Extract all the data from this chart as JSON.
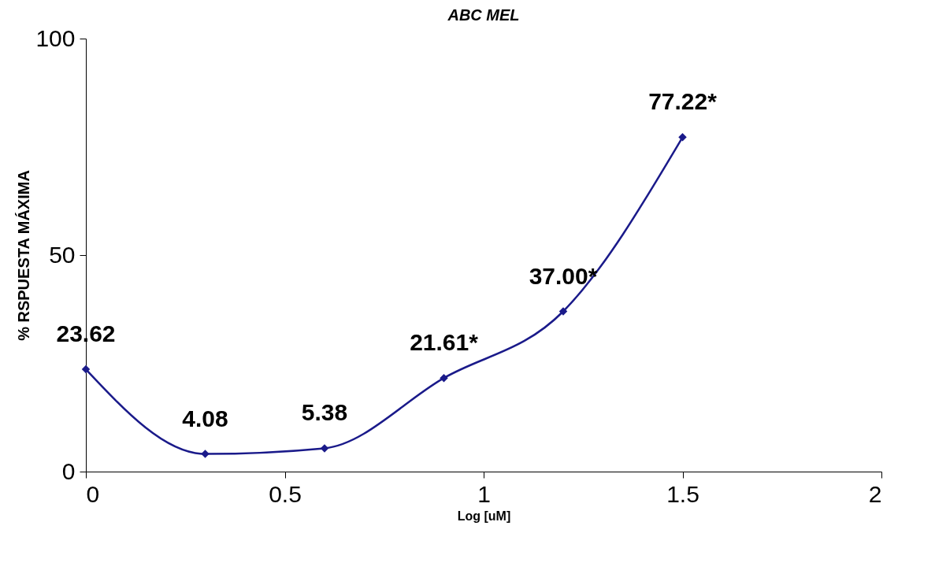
{
  "chart_data": {
    "type": "line",
    "title": "ABC MEL",
    "xlabel": "Log  [uM]",
    "ylabel": "% RSPUESTA MÁXIMA",
    "x": [
      0,
      0.3,
      0.6,
      0.9,
      1.2,
      1.5
    ],
    "series": [
      {
        "color": "#1a1a8a",
        "values": [
          23.62,
          4.08,
          5.38,
          21.61,
          37.0,
          77.22
        ],
        "value_labels": [
          "23.62",
          "4.08",
          "5.38",
          "21.61*",
          "37.00*",
          "77.22*"
        ]
      }
    ],
    "xlim": [
      0,
      2
    ],
    "xticks": [
      0,
      0.5,
      1,
      1.5,
      2
    ],
    "ylim": [
      0,
      100
    ],
    "yticks": [
      0,
      50,
      100
    ],
    "marker": "diamond",
    "line_style": "solid",
    "grid": false
  }
}
